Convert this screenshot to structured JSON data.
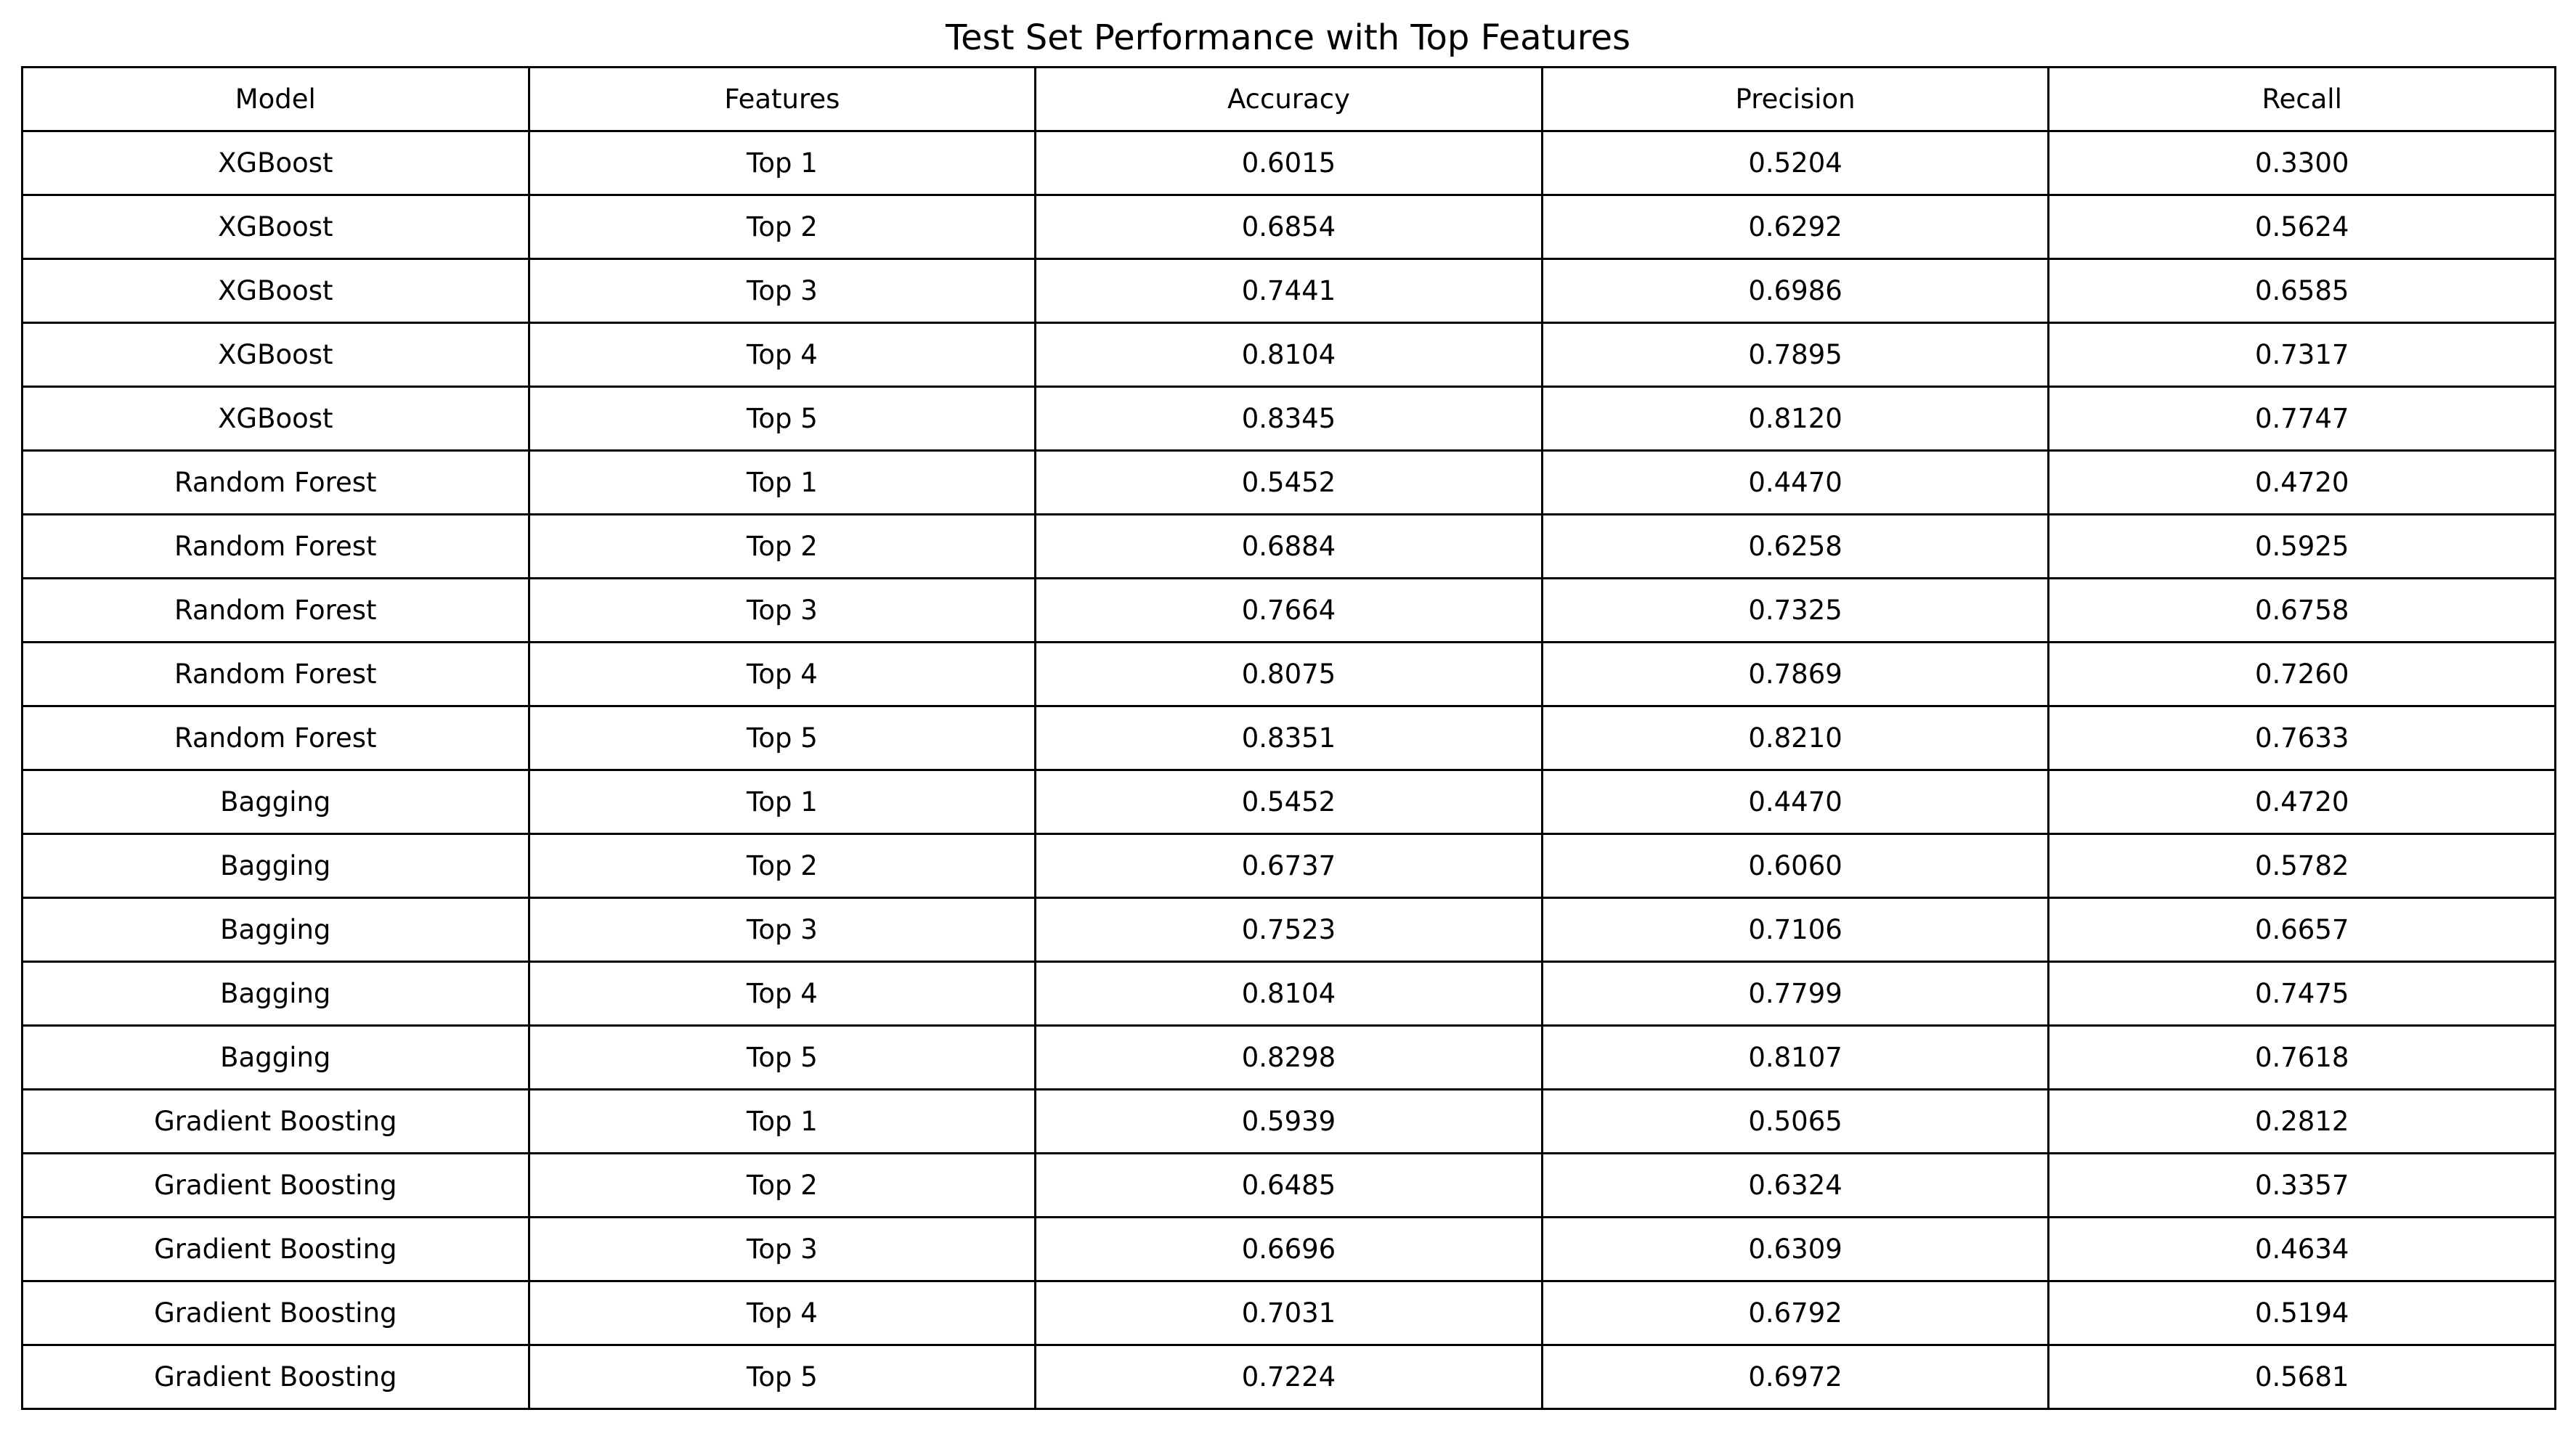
{
  "chart_data": {
    "type": "table",
    "title": "Test Set Performance with Top Features",
    "columns": [
      "Model",
      "Features",
      "Accuracy",
      "Precision",
      "Recall"
    ],
    "rows": [
      [
        "XGBoost",
        "Top 1",
        "0.6015",
        "0.5204",
        "0.3300"
      ],
      [
        "XGBoost",
        "Top 2",
        "0.6854",
        "0.6292",
        "0.5624"
      ],
      [
        "XGBoost",
        "Top 3",
        "0.7441",
        "0.6986",
        "0.6585"
      ],
      [
        "XGBoost",
        "Top 4",
        "0.8104",
        "0.7895",
        "0.7317"
      ],
      [
        "XGBoost",
        "Top 5",
        "0.8345",
        "0.8120",
        "0.7747"
      ],
      [
        "Random Forest",
        "Top 1",
        "0.5452",
        "0.4470",
        "0.4720"
      ],
      [
        "Random Forest",
        "Top 2",
        "0.6884",
        "0.6258",
        "0.5925"
      ],
      [
        "Random Forest",
        "Top 3",
        "0.7664",
        "0.7325",
        "0.6758"
      ],
      [
        "Random Forest",
        "Top 4",
        "0.8075",
        "0.7869",
        "0.7260"
      ],
      [
        "Random Forest",
        "Top 5",
        "0.8351",
        "0.8210",
        "0.7633"
      ],
      [
        "Bagging",
        "Top 1",
        "0.5452",
        "0.4470",
        "0.4720"
      ],
      [
        "Bagging",
        "Top 2",
        "0.6737",
        "0.6060",
        "0.5782"
      ],
      [
        "Bagging",
        "Top 3",
        "0.7523",
        "0.7106",
        "0.6657"
      ],
      [
        "Bagging",
        "Top 4",
        "0.8104",
        "0.7799",
        "0.7475"
      ],
      [
        "Bagging",
        "Top 5",
        "0.8298",
        "0.8107",
        "0.7618"
      ],
      [
        "Gradient Boosting",
        "Top 1",
        "0.5939",
        "0.5065",
        "0.2812"
      ],
      [
        "Gradient Boosting",
        "Top 2",
        "0.6485",
        "0.6324",
        "0.3357"
      ],
      [
        "Gradient Boosting",
        "Top 3",
        "0.6696",
        "0.6309",
        "0.4634"
      ],
      [
        "Gradient Boosting",
        "Top 4",
        "0.7031",
        "0.6792",
        "0.5194"
      ],
      [
        "Gradient Boosting",
        "Top 5",
        "0.7224",
        "0.6972",
        "0.5681"
      ]
    ]
  }
}
